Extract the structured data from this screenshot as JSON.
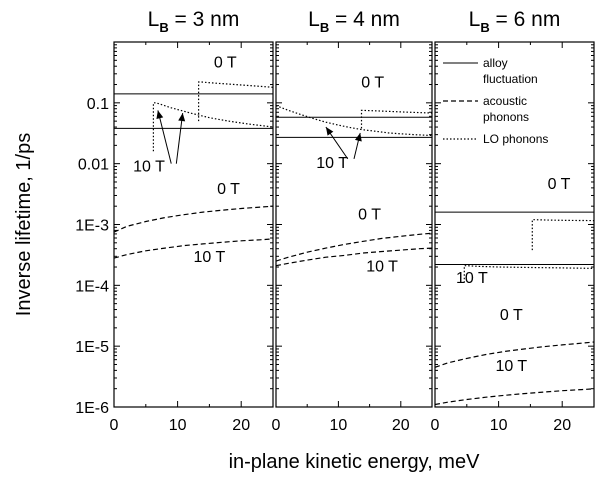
{
  "chart_data": {
    "type": "line",
    "y_scale": "log",
    "ylim": [
      1e-06,
      1
    ],
    "ytick_values": [
      1e-06,
      1e-05,
      0.0001,
      0.001,
      0.01,
      0.1
    ],
    "ytick_labels": [
      "1E-6",
      "1E-5",
      "1E-4",
      "1E-3",
      "0.01",
      "0.1"
    ],
    "xlim": [
      0,
      25
    ],
    "xtick_values": [
      0,
      10,
      20
    ],
    "xtick_labels": [
      "0",
      "10",
      "20"
    ],
    "ylabel": "Inverse lifetime, 1/ps",
    "xlabel": "in-plane kinetic energy, meV",
    "legend_position": "top-right of third panel",
    "legend": [
      {
        "style": "solid",
        "label_lines": [
          "alloy",
          "fluctuation"
        ]
      },
      {
        "style": "dashed",
        "label_lines": [
          "acoustic",
          "phonons"
        ]
      },
      {
        "style": "dotted",
        "label_lines": [
          "LO phonons"
        ]
      }
    ],
    "panels": [
      {
        "title_main": "L",
        "title_sub": "B",
        "title_rest": " = 3 nm",
        "series": [
          {
            "style": "solid",
            "x": [
              0,
              25
            ],
            "y": [
              0.14,
              0.14
            ]
          },
          {
            "style": "solid",
            "x": [
              0,
              25
            ],
            "y": [
              0.038,
              0.038
            ]
          },
          {
            "style": "dashed",
            "x": [
              0,
              2,
              5,
              8,
              11,
              14,
              17,
              20,
              23,
              25
            ],
            "y": [
              0.00075,
              0.00093,
              0.00112,
              0.0013,
              0.00145,
              0.0016,
              0.00172,
              0.00183,
              0.00193,
              0.002
            ]
          },
          {
            "style": "dashed",
            "x": [
              0,
              2,
              5,
              8,
              11,
              14,
              17,
              20,
              23,
              25
            ],
            "y": [
              0.00028,
              0.00032,
              0.00037,
              0.00041,
              0.00045,
              0.00048,
              0.00051,
              0.00054,
              0.00056,
              0.00058
            ]
          },
          {
            "style": "dotted",
            "x": [
              13.3,
              13.3,
              13.7,
              16,
              19,
              22,
              25
            ],
            "y": [
              0.05,
              0.22,
              0.22,
              0.21,
              0.2,
              0.19,
              0.18
            ]
          },
          {
            "style": "dotted",
            "x": [
              6.2,
              6.2,
              6.6,
              9,
              12,
              15,
              18,
              21,
              25
            ],
            "y": [
              0.016,
              0.1,
              0.1,
              0.083,
              0.068,
              0.057,
              0.05,
              0.045,
              0.04
            ]
          }
        ],
        "annotations": [
          {
            "text": "0 T",
            "x": 17.5,
            "y": 0.38
          },
          {
            "text": "10 T",
            "x": 5.5,
            "y": 0.0075
          },
          {
            "text": "0 T",
            "x": 18,
            "y": 0.0032
          },
          {
            "text": "10 T",
            "x": 15,
            "y": 0.00024
          }
        ],
        "arrows": [
          {
            "from": [
              9,
              0.01
            ],
            "to": [
              6.9,
              0.075
            ]
          },
          {
            "from": [
              9.8,
              0.01
            ],
            "to": [
              10.8,
              0.068
            ]
          }
        ]
      },
      {
        "title_main": "L",
        "title_sub": "B",
        "title_rest": " = 4 nm",
        "series": [
          {
            "style": "solid",
            "x": [
              0,
              25
            ],
            "y": [
              0.058,
              0.058
            ]
          },
          {
            "style": "solid",
            "x": [
              0,
              25
            ],
            "y": [
              0.027,
              0.027
            ]
          },
          {
            "style": "dashed",
            "x": [
              0,
              2,
              5,
              8,
              11,
              14,
              17,
              20,
              23,
              25
            ],
            "y": [
              0.00025,
              0.00029,
              0.00035,
              0.00041,
              0.00047,
              0.00053,
              0.00059,
              0.00064,
              0.00069,
              0.00072
            ]
          },
          {
            "style": "dashed",
            "x": [
              0,
              2,
              5,
              8,
              11,
              14,
              17,
              20,
              23,
              25
            ],
            "y": [
              0.00021,
              0.00023,
              0.00026,
              0.00029,
              0.00031,
              0.00034,
              0.00036,
              0.00038,
              0.0004,
              0.00041
            ]
          },
          {
            "style": "dotted",
            "x": [
              13.7,
              13.7,
              14.1,
              17,
              20,
              23,
              25
            ],
            "y": [
              0.038,
              0.075,
              0.075,
              0.073,
              0.071,
              0.069,
              0.068
            ]
          },
          {
            "style": "dotted",
            "x": [
              0,
              2,
              4,
              6,
              8,
              10,
              12,
              14,
              16,
              18,
              20,
              22,
              25
            ],
            "y": [
              0.09,
              0.075,
              0.064,
              0.055,
              0.048,
              0.043,
              0.039,
              0.036,
              0.034,
              0.032,
              0.031,
              0.03,
              0.029
            ]
          }
        ],
        "annotations": [
          {
            "text": "0 T",
            "x": 15.5,
            "y": 0.18
          },
          {
            "text": "10 T",
            "x": 9,
            "y": 0.0085
          },
          {
            "text": "0 T",
            "x": 15,
            "y": 0.0012
          },
          {
            "text": "10 T",
            "x": 17,
            "y": 0.00017
          }
        ],
        "arrows": [
          {
            "from": [
              11.5,
              0.012
            ],
            "to": [
              8,
              0.04
            ]
          },
          {
            "from": [
              12.5,
              0.012
            ],
            "to": [
              13.5,
              0.032
            ]
          }
        ]
      },
      {
        "title_main": "L",
        "title_sub": "B",
        "title_rest": " = 6 nm",
        "series": [
          {
            "style": "solid",
            "x": [
              0,
              25
            ],
            "y": [
              0.0016,
              0.0016
            ]
          },
          {
            "style": "solid",
            "x": [
              0,
              25
            ],
            "y": [
              0.00022,
              0.00022
            ]
          },
          {
            "style": "dashed",
            "x": [
              0,
              2,
              5,
              8,
              11,
              14,
              17,
              20,
              23,
              25
            ],
            "y": [
              4.5e-06,
              5.3e-06,
              6.3e-06,
              7.3e-06,
              8.2e-06,
              9e-06,
              9.8e-06,
              1.05e-05,
              1.12e-05,
              1.17e-05
            ]
          },
          {
            "style": "dashed",
            "x": [
              0,
              2,
              5,
              8,
              11,
              14,
              17,
              20,
              23,
              25
            ],
            "y": [
              1.1e-06,
              1.2e-06,
              1.33e-06,
              1.45e-06,
              1.56e-06,
              1.66e-06,
              1.76e-06,
              1.85e-06,
              1.93e-06,
              1.99e-06
            ]
          },
          {
            "style": "dotted",
            "x": [
              15.3,
              15.3,
              15.7,
              18,
              21,
              25
            ],
            "y": [
              0.00038,
              0.0012,
              0.0012,
              0.00118,
              0.00117,
              0.00116
            ]
          },
          {
            "style": "dotted",
            "x": [
              4.6,
              4.6,
              5,
              7,
              10,
              13,
              16,
              19,
              22,
              25
            ],
            "y": [
              0.00011,
              0.00021,
              0.00021,
              0.000205,
              0.0002,
              0.000198,
              0.000196,
              0.000194,
              0.000192,
              0.00019
            ]
          }
        ],
        "annotations": [
          {
            "text": "0 T",
            "x": 19.5,
            "y": 0.0038
          },
          {
            "text": "10 T",
            "x": 5.8,
            "y": 0.00011
          },
          {
            "text": "0 T",
            "x": 12,
            "y": 2.7e-05
          },
          {
            "text": "10 T",
            "x": 12,
            "y": 3.9e-06
          }
        ],
        "arrows": []
      }
    ]
  }
}
